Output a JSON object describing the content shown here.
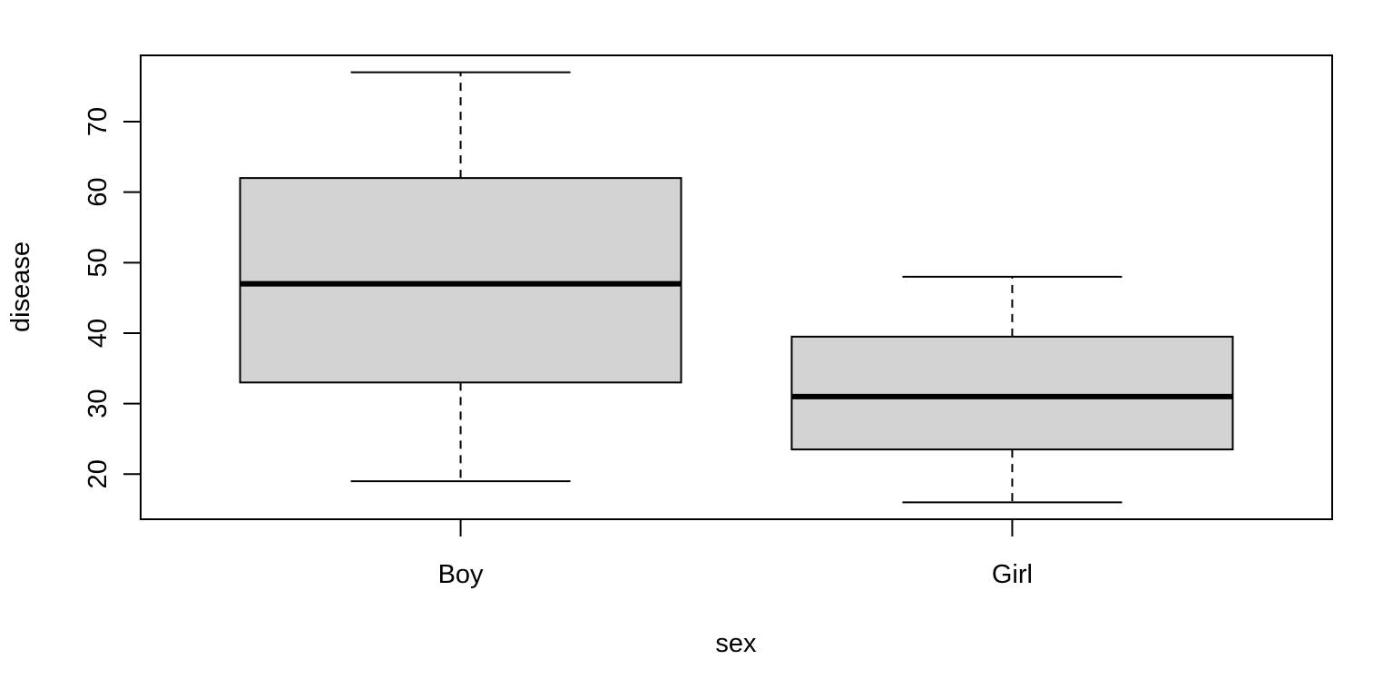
{
  "chart_data": {
    "type": "boxplot",
    "xlabel": "sex",
    "ylabel": "disease",
    "categories": [
      "Boy",
      "Girl"
    ],
    "boxes": [
      {
        "category": "Boy",
        "whisker_low": 19,
        "q1": 33,
        "median": 47,
        "q3": 62,
        "whisker_high": 77
      },
      {
        "category": "Girl",
        "whisker_low": 16,
        "q1": 23.5,
        "median": 31,
        "q3": 39.5,
        "whisker_high": 48
      }
    ],
    "yticks": [
      20,
      30,
      40,
      50,
      60,
      70
    ],
    "ylim": [
      13.6,
      79.4
    ],
    "grid": false,
    "colors": {
      "box_fill": "#d3d3d3",
      "stroke": "#000000"
    }
  }
}
